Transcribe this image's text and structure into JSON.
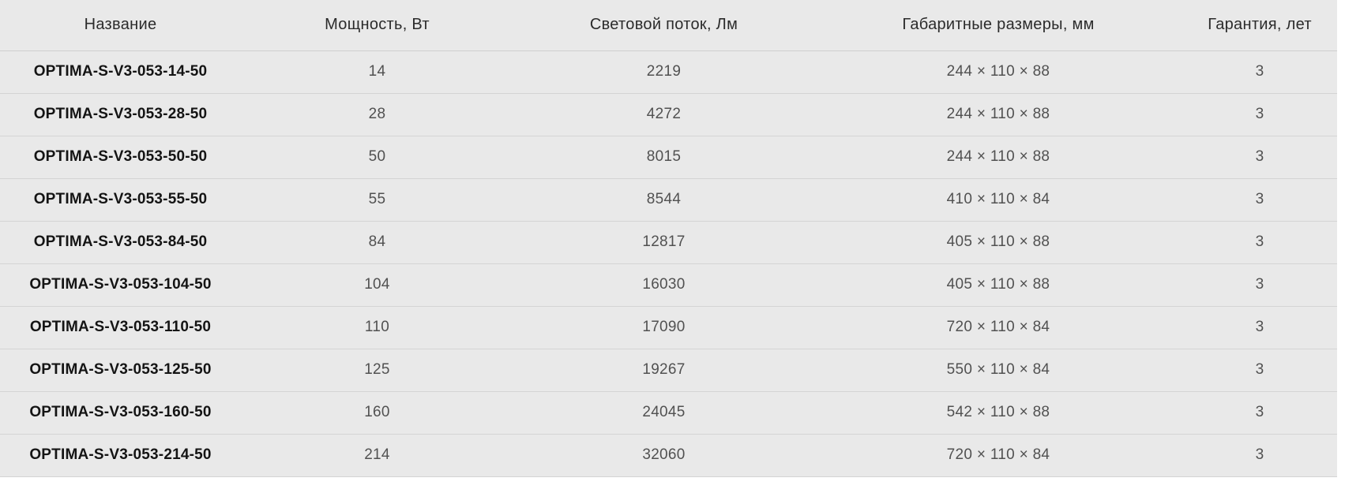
{
  "colors": {
    "row_background": "#e9e9e9",
    "divider": "#d4d4d4",
    "header_text": "#2b2b2b",
    "name_text": "#141414",
    "value_text": "#515151",
    "page_background": "#ffffff"
  },
  "table": {
    "columns": [
      "Название",
      "Мощность, Вт",
      "Световой поток, Лм",
      "Габаритные размеры, мм",
      "Гарантия, лет"
    ],
    "rows": [
      [
        "OPTIMA-S-V3-053-14-50",
        "14",
        "2219",
        "244 × 110 × 88",
        "3"
      ],
      [
        "OPTIMA-S-V3-053-28-50",
        "28",
        "4272",
        "244 × 110 × 88",
        "3"
      ],
      [
        "OPTIMA-S-V3-053-50-50",
        "50",
        "8015",
        "244 × 110 × 88",
        "3"
      ],
      [
        "OPTIMA-S-V3-053-55-50",
        "55",
        "8544",
        "410 × 110 × 84",
        "3"
      ],
      [
        "OPTIMA-S-V3-053-84-50",
        "84",
        "12817",
        "405 × 110 × 88",
        "3"
      ],
      [
        "OPTIMA-S-V3-053-104-50",
        "104",
        "16030",
        "405 × 110 × 88",
        "3"
      ],
      [
        "OPTIMA-S-V3-053-110-50",
        "110",
        "17090",
        "720 × 110 × 84",
        "3"
      ],
      [
        "OPTIMA-S-V3-053-125-50",
        "125",
        "19267",
        "550 × 110 × 84",
        "3"
      ],
      [
        "OPTIMA-S-V3-053-160-50",
        "160",
        "24045",
        "542 × 110 × 88",
        "3"
      ],
      [
        "OPTIMA-S-V3-053-214-50",
        "214",
        "32060",
        "720 × 110 × 84",
        "3"
      ]
    ]
  }
}
